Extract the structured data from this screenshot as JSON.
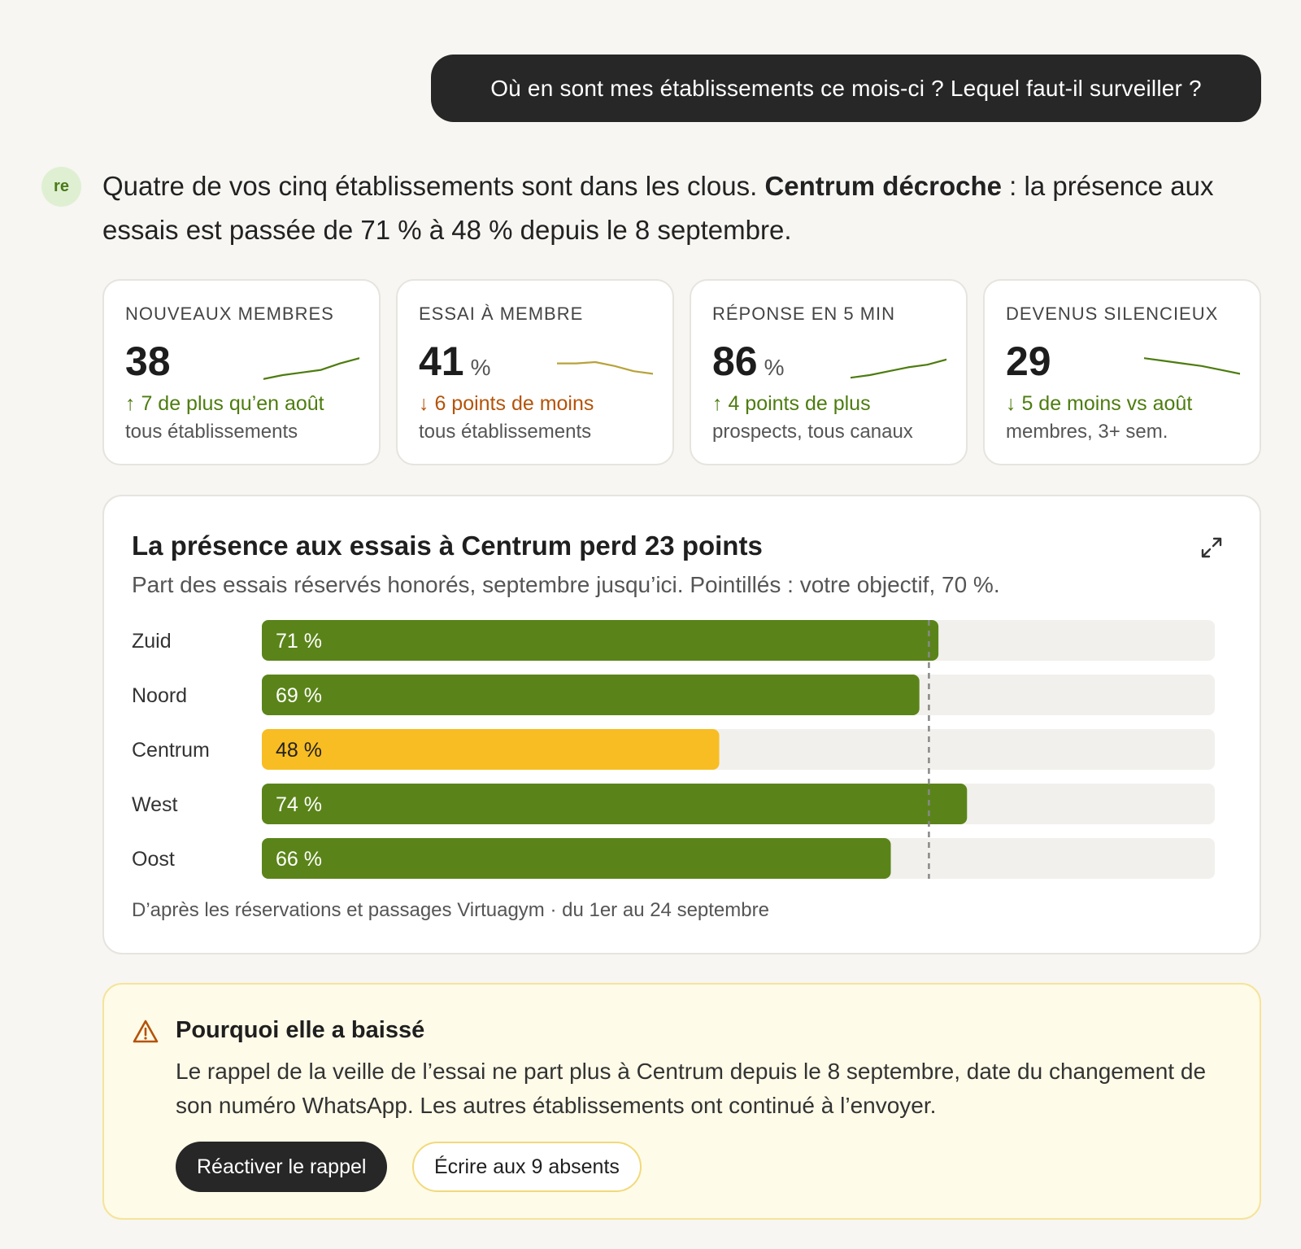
{
  "user_message": "Où en sont mes établissements ce mois-ci ? Lequel faut-il surveiller ?",
  "assistant": {
    "avatar_initials": "re",
    "intro_part1": "Quatre de vos cinq établissements sont dans les clous. ",
    "intro_bold": "Centrum décroche",
    "intro_part2": " : la présence aux essais est passée de 71 % à 48 % depuis le 8 septembre."
  },
  "kpis": [
    {
      "label": "NOUVEAUX MEMBRES",
      "value": "38",
      "unit": "",
      "delta": "↑ 7 de plus qu’en août",
      "delta_tone": "up",
      "sub": "tous établissements",
      "spark_color": "#4d7c0f",
      "spark_trend": [
        0.1,
        0.25,
        0.35,
        0.45,
        0.7,
        0.9
      ]
    },
    {
      "label": "ESSAI À MEMBRE",
      "value": "41",
      "unit": "%",
      "delta": "↓ 6 points de moins",
      "delta_tone": "down-bad",
      "sub": "tous établissements",
      "spark_color": "#b8a23a",
      "spark_trend": [
        0.7,
        0.7,
        0.75,
        0.6,
        0.4,
        0.3
      ]
    },
    {
      "label": "RÉPONSE EN 5 MIN",
      "value": "86",
      "unit": "%",
      "delta": "↑ 4 points de plus",
      "delta_tone": "up",
      "sub": "prospects, tous canaux",
      "spark_color": "#4d7c0f",
      "spark_trend": [
        0.15,
        0.25,
        0.4,
        0.55,
        0.65,
        0.85
      ]
    },
    {
      "label": "DEVENUS SILENCIEUX",
      "value": "29",
      "unit": "",
      "delta": "↓ 5 de moins vs août",
      "delta_tone": "down-good",
      "sub": "membres, 3+ sem.",
      "spark_color": "#4d7c0f",
      "spark_trend": [
        0.9,
        0.8,
        0.7,
        0.6,
        0.45,
        0.3
      ]
    }
  ],
  "chart": {
    "title": "La présence aux essais à Centrum perd 23 points",
    "subtitle": "Part des essais réservés honorés, septembre jusqu’ici. Pointillés : votre objectif, 70 %.",
    "footnote": "D’après les réservations et passages Virtuagym · du 1er au 24 septembre"
  },
  "chart_data": {
    "type": "bar",
    "orientation": "horizontal",
    "categories": [
      "Zuid",
      "Noord",
      "Centrum",
      "West",
      "Oost"
    ],
    "values": [
      71,
      69,
      48,
      74,
      66
    ],
    "value_labels": [
      "71 %",
      "69 %",
      "48 %",
      "74 %",
      "66 %"
    ],
    "highlight": "Centrum",
    "target": 70,
    "xlim": [
      0,
      100
    ],
    "colors": {
      "normal": "#5a8419",
      "highlight": "#f8bd23",
      "track": "#f1f0ec",
      "target": "#888888"
    }
  },
  "alert": {
    "title": "Pourquoi elle a baissé",
    "text": "Le rappel de la veille de l’essai ne part plus à Centrum depuis le 8 septembre, date du changement de son numéro WhatsApp. Les autres établissements ont continué à l’envoyer.",
    "primary_button": "Réactiver le rappel",
    "secondary_button": "Écrire aux 9 absents"
  }
}
